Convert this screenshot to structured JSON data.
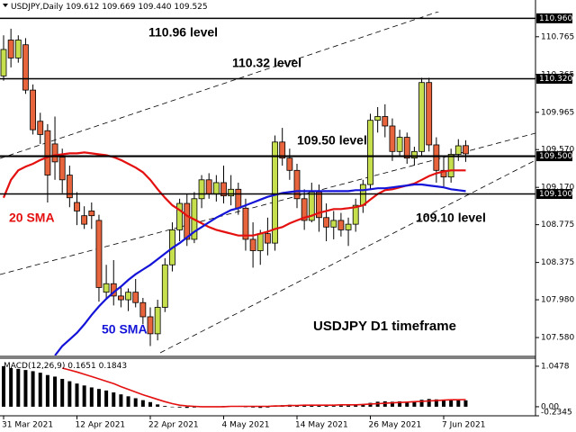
{
  "chart_data": [
    {
      "type": "candlestick",
      "title": "USDJPY,Daily",
      "header_values": [
        "109.612",
        "109.669",
        "109.440",
        "109.525"
      ],
      "categories": [
        "31 Mar 2021",
        null,
        null,
        null,
        null,
        null,
        null,
        null,
        null,
        null,
        "12 Apr 2021",
        null,
        null,
        null,
        null,
        null,
        null,
        null,
        null,
        null,
        "22 Apr 2021",
        null,
        null,
        null,
        null,
        null,
        null,
        null,
        null,
        null,
        "4 May 2021",
        null,
        null,
        null,
        null,
        null,
        null,
        null,
        null,
        null,
        "14 May 2021",
        null,
        null,
        null,
        null,
        null,
        null,
        null,
        null,
        null,
        "26 May 2021",
        null,
        null,
        null,
        null,
        null,
        null,
        null,
        null,
        null,
        "7 Jun 2021",
        null,
        null,
        null
      ],
      "open": [
        110.35,
        110.73,
        110.54,
        110.68,
        110.2,
        109.87,
        109.77,
        109.63,
        109.49,
        109.3,
        109.01,
        108.87,
        108.92,
        108.82,
        108.06,
        108.15,
        108.02,
        107.98,
        108.06,
        107.95,
        107.8,
        107.62,
        107.9,
        108.35,
        108.72,
        109.0,
        108.62,
        109.05,
        109.25,
        109.1,
        109.22,
        109.08,
        109.15,
        108.95,
        108.62,
        108.5,
        108.68,
        108.58,
        109.65,
        109.48,
        109.35,
        109.05,
        108.82,
        109.12,
        108.85,
        108.75,
        108.82,
        108.72,
        108.78,
        108.98,
        109.2,
        109.88,
        109.92,
        109.82,
        109.55,
        109.7,
        109.48,
        109.55,
        110.28,
        109.62,
        109.35,
        109.28,
        109.52,
        109.612
      ],
      "high": [
        110.78,
        110.85,
        110.78,
        110.75,
        110.26,
        109.96,
        109.84,
        109.92,
        109.58,
        109.4,
        109.12,
        108.97,
        109.01,
        108.88,
        108.35,
        108.4,
        108.12,
        108.1,
        108.2,
        108.0,
        107.9,
        107.98,
        108.42,
        108.8,
        109.05,
        109.1,
        109.12,
        109.3,
        109.32,
        109.3,
        109.4,
        109.3,
        109.22,
        109.05,
        108.8,
        108.72,
        108.85,
        109.72,
        109.8,
        109.58,
        109.42,
        109.15,
        109.22,
        109.2,
        109.0,
        108.92,
        108.9,
        108.85,
        109.05,
        109.25,
        109.95,
        110.02,
        110.05,
        109.9,
        109.78,
        109.75,
        109.6,
        110.33,
        110.33,
        109.7,
        109.5,
        109.58,
        109.68,
        109.669
      ],
      "low": [
        110.3,
        110.44,
        110.49,
        110.16,
        109.73,
        109.63,
        109.01,
        109.25,
        109.11,
        108.96,
        108.77,
        108.73,
        108.73,
        107.96,
        107.98,
        107.92,
        107.9,
        107.86,
        107.9,
        107.72,
        107.49,
        107.55,
        107.85,
        108.28,
        108.6,
        108.55,
        108.58,
        108.95,
        109.05,
        109.02,
        109.0,
        108.98,
        108.88,
        108.5,
        108.32,
        108.35,
        108.45,
        108.5,
        109.4,
        109.25,
        108.95,
        108.72,
        108.8,
        108.7,
        108.6,
        108.62,
        108.65,
        108.55,
        108.7,
        108.9,
        109.15,
        109.75,
        109.7,
        109.45,
        109.5,
        109.42,
        109.4,
        109.5,
        109.55,
        109.22,
        109.18,
        109.22,
        109.45,
        109.44
      ],
      "close": [
        110.63,
        110.54,
        110.73,
        110.2,
        109.78,
        109.73,
        109.3,
        109.44,
        109.25,
        109.06,
        108.92,
        108.78,
        108.87,
        108.11,
        108.15,
        108.02,
        107.98,
        108.06,
        107.95,
        107.8,
        107.62,
        107.9,
        108.35,
        108.72,
        109.0,
        108.62,
        109.05,
        109.25,
        109.1,
        109.22,
        109.08,
        109.15,
        108.95,
        108.62,
        108.5,
        108.68,
        108.58,
        109.65,
        109.48,
        109.35,
        109.05,
        108.82,
        109.12,
        108.85,
        108.75,
        108.82,
        108.72,
        108.78,
        108.98,
        109.2,
        109.88,
        109.92,
        109.82,
        109.55,
        109.7,
        109.48,
        109.55,
        110.28,
        109.62,
        109.35,
        109.28,
        109.52,
        109.61,
        109.525
      ],
      "up_color": "#c6df4c",
      "down_color": "#e8643c",
      "series": [
        {
          "name": "20 SMA",
          "color": "#e41010",
          "values": [
            109.06,
            109.25,
            109.35,
            109.39,
            109.42,
            109.46,
            109.49,
            109.51,
            109.52,
            109.53,
            109.53,
            109.54,
            109.53,
            109.52,
            109.51,
            109.49,
            109.46,
            109.42,
            109.38,
            109.33,
            109.25,
            109.15,
            109.06,
            108.98,
            108.93,
            108.87,
            108.83,
            108.79,
            108.75,
            108.72,
            108.7,
            108.68,
            108.66,
            108.66,
            108.66,
            108.68,
            108.7,
            108.73,
            108.75,
            108.79,
            108.82,
            108.85,
            108.87,
            108.9,
            108.92,
            108.94,
            108.94,
            108.95,
            108.96,
            108.98,
            109.04,
            109.1,
            109.14,
            109.15,
            109.17,
            109.19,
            109.21,
            109.25,
            109.29,
            109.32,
            109.34,
            109.35,
            109.35,
            109.35
          ]
        },
        {
          "name": "50 SMA",
          "color": "#1414d8",
          "values": [
            null,
            null,
            null,
            null,
            null,
            null,
            null,
            107.39,
            107.49,
            107.56,
            107.63,
            107.72,
            107.82,
            107.91,
            107.99,
            108.06,
            108.12,
            108.19,
            108.25,
            108.3,
            108.35,
            108.41,
            108.47,
            108.53,
            108.58,
            108.64,
            108.7,
            108.75,
            108.8,
            108.85,
            108.89,
            108.93,
            108.95,
            108.98,
            109.01,
            109.04,
            109.07,
            109.09,
            109.11,
            109.12,
            109.13,
            109.13,
            109.13,
            109.13,
            109.13,
            109.13,
            109.13,
            109.13,
            109.14,
            109.14,
            109.15,
            109.16,
            109.16,
            109.17,
            109.18,
            109.19,
            109.2,
            109.2,
            109.19,
            109.18,
            109.17,
            109.15,
            109.14,
            109.13
          ]
        }
      ],
      "levels": [
        {
          "value": 110.96,
          "label": "110.960",
          "text": "110.96 level"
        },
        {
          "value": 110.32,
          "label": "110.320",
          "text": "110.32 level"
        },
        {
          "value": 109.5,
          "label": "109.500",
          "text": "109.50 level"
        },
        {
          "value": 109.1,
          "label": "109.100",
          "text": "109.10 level"
        }
      ],
      "annotation": "USDJPY D1 timeframe",
      "ylim": [
        107.39,
        111.03
      ],
      "yticks": [
        110.765,
        110.365,
        109.965,
        {
          "value": 109.57,
          "label": "109.570"
        },
        {
          "value": 109.17,
          "label": "109.170"
        },
        108.775,
        108.375,
        {
          "value": 107.98,
          "label": "107.980"
        },
        {
          "value": 107.58,
          "label": "107.580"
        }
      ]
    },
    {
      "type": "macd",
      "title": "MACD(12,26,9)",
      "histogram": [
        1.05,
        1.0,
        0.98,
        0.95,
        0.92,
        0.88,
        0.82,
        0.78,
        0.72,
        0.66,
        0.6,
        0.55,
        0.5,
        0.46,
        0.42,
        0.37,
        0.32,
        0.27,
        0.22,
        0.17,
        0.12,
        0.06,
        0.02,
        -0.01,
        -0.02,
        -0.03,
        -0.02,
        -0.01,
        0,
        0.01,
        0.02,
        0.02,
        0.01,
        -0.01,
        -0.02,
        -0.03,
        -0.02,
        0.02,
        0.04,
        0.05,
        0.04,
        0.03,
        0.04,
        0.03,
        0.02,
        0.02,
        0.03,
        0.03,
        0.04,
        0.06,
        0.1,
        0.13,
        0.14,
        0.13,
        0.14,
        0.13,
        0.13,
        0.18,
        0.2,
        0.19,
        0.18,
        0.18,
        0.17,
        0.1651
      ],
      "histogram_color": "#000000",
      "signal": [
        null,
        null,
        null,
        null,
        null,
        null,
        null,
        null,
        1.0,
        0.95,
        0.9,
        0.84,
        0.78,
        0.72,
        0.66,
        0.6,
        0.52,
        0.45,
        0.38,
        0.31,
        0.25,
        0.19,
        0.13,
        0.08,
        0.04,
        0.02,
        0.01,
        0,
        0,
        0,
        0,
        0.01,
        0.01,
        0.01,
        0.01,
        0.01,
        0.01,
        0.02,
        0.02,
        0.03,
        0.03,
        0.04,
        0.04,
        0.04,
        0.04,
        0.04,
        0.05,
        0.05,
        0.05,
        0.06,
        0.07,
        0.08,
        0.09,
        0.1,
        0.11,
        0.12,
        0.13,
        0.14,
        0.15,
        0.16,
        0.17,
        0.18,
        0.18,
        0.1843
      ],
      "signal_color": "#e41010",
      "ylim": [
        -0.2345,
        1.2559
      ],
      "yticks": [
        1.0478,
        {
          "value": 0,
          "label": "0.00"
        },
        -0.2345
      ]
    }
  ]
}
